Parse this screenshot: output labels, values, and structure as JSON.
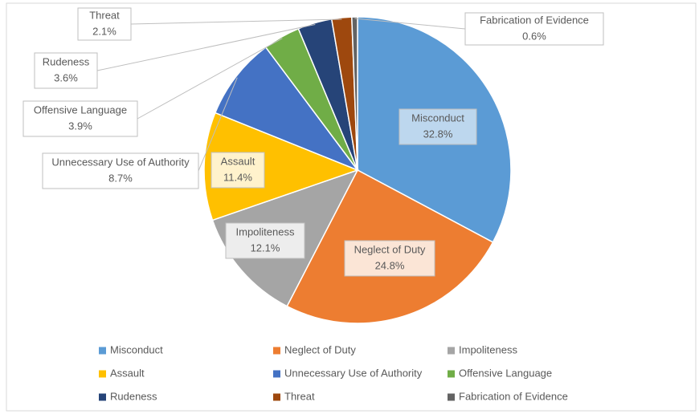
{
  "chart_data": {
    "type": "pie",
    "categories": [
      "Misconduct",
      "Neglect of Duty",
      "Impoliteness",
      "Assault",
      "Unnecessary Use of Authority",
      "Offensive Language",
      "Rudeness",
      "Threat",
      "Fabrication of Evidence"
    ],
    "values": [
      32.8,
      24.8,
      12.1,
      11.4,
      8.7,
      3.9,
      3.6,
      2.1,
      0.6
    ],
    "value_labels": [
      "32.8%",
      "24.8%",
      "12.1%",
      "11.4%",
      "8.7%",
      "3.9%",
      "3.6%",
      "2.1%",
      "0.6%"
    ],
    "colors": [
      "#5b9bd5",
      "#ed7d31",
      "#a5a5a5",
      "#ffc000",
      "#4472c4",
      "#70ad47",
      "#264478",
      "#9e480e",
      "#636363"
    ],
    "legend": "bottom"
  }
}
